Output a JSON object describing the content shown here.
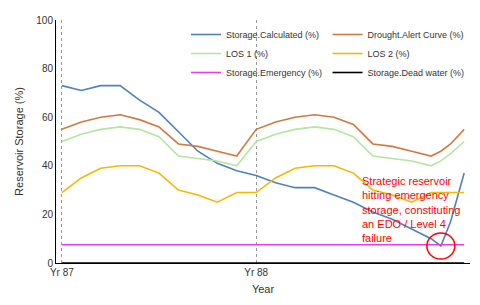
{
  "chart_data": {
    "type": "line",
    "x_label": "Year",
    "y_label": "Reservoir Storage (%)",
    "x": [
      87.0,
      87.1,
      87.2,
      87.3,
      87.4,
      87.5,
      87.6,
      87.7,
      87.8,
      87.9,
      88.0,
      88.1,
      88.2,
      88.3,
      88.4,
      88.5,
      88.6,
      88.7,
      88.8,
      88.9,
      88.95,
      89.0,
      89.07
    ],
    "series": [
      {
        "name": "Storage.Calculated (%)",
        "color": "#4f81bd",
        "values": [
          73,
          71,
          73,
          73,
          67,
          62,
          54,
          46,
          41,
          38,
          36,
          33,
          31,
          31,
          28,
          25,
          21,
          18,
          14,
          10,
          7,
          17,
          37
        ]
      },
      {
        "name": "Drought.Alert Curve (%)",
        "color": "#d2793f",
        "values": [
          55,
          58,
          60,
          61,
          59,
          56,
          49,
          48,
          46,
          44,
          55,
          58,
          60,
          61,
          60,
          57,
          49,
          48,
          46,
          44,
          46,
          49,
          55
        ]
      },
      {
        "name": "LOS 1 (%)",
        "color": "#b3e6a1",
        "values": [
          50,
          53,
          55,
          56,
          55,
          52,
          44,
          43,
          42,
          40,
          50,
          53,
          55,
          56,
          55,
          52,
          44,
          43,
          42,
          40,
          42,
          45,
          50
        ]
      },
      {
        "name": "LOS 2 (%)",
        "color": "#f5b800",
        "values": [
          29,
          35,
          39,
          40,
          40,
          37,
          30,
          28,
          25,
          29,
          29,
          35,
          39,
          40,
          40,
          37,
          30,
          28,
          25,
          29,
          29,
          29,
          29
        ]
      },
      {
        "name": "Storage.Emergency (%)",
        "color": "#e83ce8",
        "values": [
          7.5,
          7.5,
          7.5,
          7.5,
          7.5,
          7.5,
          7.5,
          7.5,
          7.5,
          7.5,
          7.5,
          7.5,
          7.5,
          7.5,
          7.5,
          7.5,
          7.5,
          7.5,
          7.5,
          7.5,
          7.5,
          7.5,
          7.5
        ]
      },
      {
        "name": "Storage.Dead water (%)",
        "color": "#000000",
        "values": [
          0,
          0,
          0,
          0,
          0,
          0,
          0,
          0,
          0,
          0,
          0,
          0,
          0,
          0,
          0,
          0,
          0,
          0,
          0,
          0,
          0,
          0,
          0
        ]
      }
    ],
    "xlim": [
      86.97,
      89.1
    ],
    "xticks": [
      {
        "value": 87,
        "label": "Yr 87"
      },
      {
        "value": 88,
        "label": "Yr 88"
      }
    ],
    "ylim": [
      0,
      100
    ],
    "yticks": [
      0,
      20,
      40,
      60,
      80,
      100
    ],
    "grid": true,
    "legend": "top-right",
    "annotation": "Strategic reservoir\nhitting emergency\nstorage, constituting\nan EDO / Level 4\nfailure",
    "annotation_color": "#ff0000"
  }
}
